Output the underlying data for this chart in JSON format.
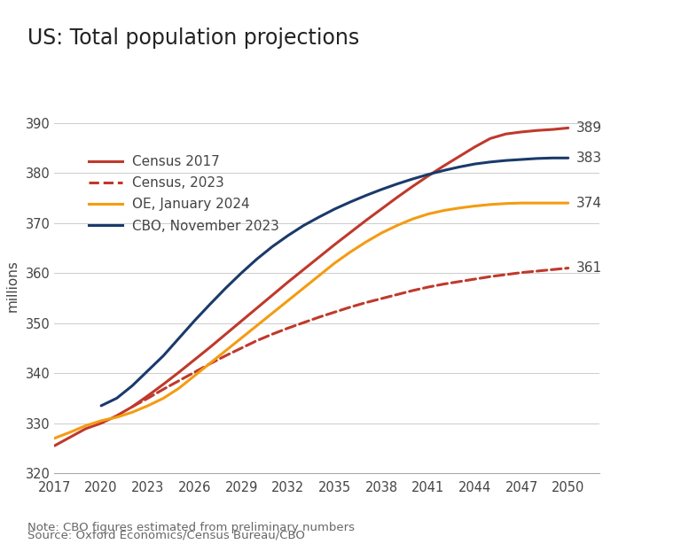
{
  "title": "US: Total population projections",
  "ylabel": "millions",
  "xlim": [
    2017,
    2052
  ],
  "ylim": [
    320,
    395
  ],
  "xticks": [
    2017,
    2020,
    2023,
    2026,
    2029,
    2032,
    2035,
    2038,
    2041,
    2044,
    2047,
    2050
  ],
  "yticks": [
    320,
    330,
    340,
    350,
    360,
    370,
    380,
    390
  ],
  "background_color": "#ffffff",
  "note": "Note: CBO figures estimated from preliminary numbers",
  "source": "Source: Oxford Economics/Census Bureau/CBO",
  "series": [
    {
      "label": "Census 2017",
      "color": "#c0392b",
      "linestyle": "solid",
      "linewidth": 2.2,
      "end_label": "389",
      "years": [
        2017,
        2018,
        2019,
        2020,
        2021,
        2022,
        2023,
        2024,
        2025,
        2026,
        2027,
        2028,
        2029,
        2030,
        2031,
        2032,
        2033,
        2034,
        2035,
        2036,
        2037,
        2038,
        2039,
        2040,
        2041,
        2042,
        2043,
        2044,
        2045,
        2046,
        2047,
        2048,
        2049,
        2050
      ],
      "values": [
        325.5,
        327.2,
        328.9,
        330.0,
        331.5,
        333.3,
        335.5,
        337.8,
        340.2,
        342.7,
        345.2,
        347.8,
        350.4,
        353.0,
        355.6,
        358.2,
        360.7,
        363.2,
        365.7,
        368.1,
        370.5,
        372.8,
        375.1,
        377.3,
        379.4,
        381.4,
        383.3,
        385.2,
        386.9,
        387.8,
        388.2,
        388.5,
        388.7,
        389.0
      ]
    },
    {
      "label": "Census, 2023",
      "color": "#c0392b",
      "linestyle": "dashed",
      "linewidth": 2.2,
      "end_label": "361",
      "years": [
        2022,
        2023,
        2024,
        2025,
        2026,
        2027,
        2028,
        2029,
        2030,
        2031,
        2032,
        2033,
        2034,
        2035,
        2036,
        2037,
        2038,
        2039,
        2040,
        2041,
        2042,
        2043,
        2044,
        2045,
        2046,
        2047,
        2048,
        2049,
        2050
      ],
      "values": [
        333.3,
        335.0,
        336.8,
        338.5,
        340.2,
        341.9,
        343.5,
        345.0,
        346.5,
        347.8,
        349.0,
        350.1,
        351.2,
        352.2,
        353.2,
        354.1,
        354.9,
        355.7,
        356.5,
        357.2,
        357.8,
        358.3,
        358.8,
        359.3,
        359.7,
        360.1,
        360.4,
        360.7,
        361.0
      ]
    },
    {
      "label": "OE, January 2024",
      "color": "#f39c12",
      "linestyle": "solid",
      "linewidth": 2.2,
      "end_label": "374",
      "years": [
        2017,
        2018,
        2019,
        2020,
        2021,
        2022,
        2023,
        2024,
        2025,
        2026,
        2027,
        2028,
        2029,
        2030,
        2031,
        2032,
        2033,
        2034,
        2035,
        2036,
        2037,
        2038,
        2039,
        2040,
        2041,
        2042,
        2043,
        2044,
        2045,
        2046,
        2047,
        2048,
        2049,
        2050
      ],
      "values": [
        327.0,
        328.2,
        329.5,
        330.5,
        331.2,
        332.2,
        333.5,
        335.0,
        337.0,
        339.5,
        342.0,
        344.5,
        347.0,
        349.5,
        352.0,
        354.5,
        357.0,
        359.5,
        362.0,
        364.2,
        366.2,
        368.0,
        369.5,
        370.8,
        371.8,
        372.5,
        373.0,
        373.4,
        373.7,
        373.9,
        374.0,
        374.0,
        374.0,
        374.0
      ]
    },
    {
      "label": "CBO, November 2023",
      "color": "#1a3a6b",
      "linestyle": "solid",
      "linewidth": 2.2,
      "end_label": "383",
      "years": [
        2020,
        2021,
        2022,
        2023,
        2024,
        2025,
        2026,
        2027,
        2028,
        2029,
        2030,
        2031,
        2032,
        2033,
        2034,
        2035,
        2036,
        2037,
        2038,
        2039,
        2040,
        2041,
        2042,
        2043,
        2044,
        2045,
        2046,
        2047,
        2048,
        2049,
        2050
      ],
      "values": [
        333.5,
        335.0,
        337.5,
        340.5,
        343.5,
        347.0,
        350.5,
        353.8,
        357.0,
        360.0,
        362.8,
        365.3,
        367.5,
        369.5,
        371.2,
        372.8,
        374.2,
        375.5,
        376.7,
        377.8,
        378.8,
        379.7,
        380.5,
        381.2,
        381.8,
        382.2,
        382.5,
        382.7,
        382.9,
        383.0,
        383.0
      ]
    }
  ]
}
